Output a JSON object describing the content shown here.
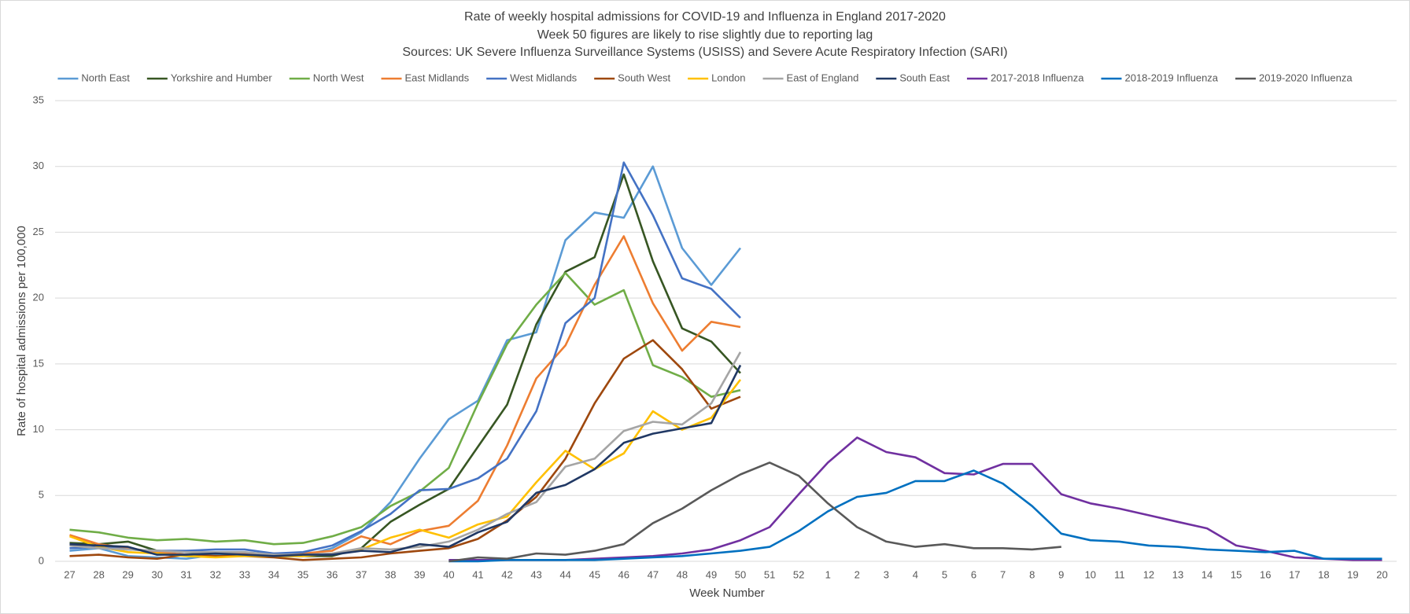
{
  "chart_data": {
    "type": "line",
    "title": "Rate of weekly hospital admissions for COVID-19 and Influenza in England 2017-2020",
    "subtitle": "Week 50 figures are likely to rise slightly due to reporting lag",
    "source": "Sources: UK Severe Influenza Surveillance Systems (USISS) and Severe Acute Respiratory Infection (SARI)",
    "x_label": "Week Number",
    "y_label": "Rate of hospital admissions per 100,000",
    "categories": [
      "27",
      "28",
      "29",
      "30",
      "31",
      "32",
      "33",
      "34",
      "35",
      "36",
      "37",
      "38",
      "39",
      "40",
      "41",
      "42",
      "43",
      "44",
      "45",
      "46",
      "47",
      "48",
      "49",
      "50",
      "51",
      "52",
      "1",
      "2",
      "3",
      "4",
      "5",
      "6",
      "7",
      "8",
      "9",
      "10",
      "11",
      "12",
      "13",
      "14",
      "15",
      "16",
      "17",
      "18",
      "19",
      "20"
    ],
    "ylim": [
      0,
      35
    ],
    "yticks": [
      0,
      5,
      10,
      15,
      20,
      25,
      30,
      35
    ],
    "grid": true,
    "legend": "top",
    "series": [
      {
        "name": "North East",
        "color": "#5b9bd5",
        "values": [
          0.8,
          1.0,
          0.4,
          0.3,
          0.2,
          0.5,
          0.5,
          0.4,
          0.4,
          1.0,
          2.2,
          4.5,
          7.8,
          10.8,
          12.2,
          16.8,
          17.4,
          24.4,
          26.5,
          26.1,
          30.0,
          23.8,
          21.0,
          23.8,
          null,
          null,
          null,
          null,
          null,
          null,
          null,
          null,
          null,
          null,
          null,
          null,
          null,
          null,
          null,
          null,
          null,
          null,
          null,
          null,
          null,
          null
        ]
      },
      {
        "name": "Yorkshire and Humber",
        "color": "#375623",
        "values": [
          1.4,
          1.3,
          1.5,
          0.8,
          0.7,
          0.6,
          0.5,
          0.4,
          0.4,
          0.4,
          1.0,
          3.0,
          4.3,
          5.5,
          8.7,
          11.9,
          18.0,
          22.0,
          23.1,
          29.4,
          22.8,
          17.7,
          16.7,
          14.3,
          null,
          null,
          null,
          null,
          null,
          null,
          null,
          null,
          null,
          null,
          null,
          null,
          null,
          null,
          null,
          null,
          null,
          null,
          null,
          null,
          null,
          null
        ]
      },
      {
        "name": "North West",
        "color": "#70ad47",
        "values": [
          2.4,
          2.2,
          1.8,
          1.6,
          1.7,
          1.5,
          1.6,
          1.3,
          1.4,
          1.9,
          2.6,
          4.2,
          5.3,
          7.1,
          12.0,
          16.5,
          19.5,
          21.9,
          19.5,
          20.6,
          14.9,
          14.0,
          12.5,
          13.0,
          null,
          null,
          null,
          null,
          null,
          null,
          null,
          null,
          null,
          null,
          null,
          null,
          null,
          null,
          null,
          null,
          null,
          null,
          null,
          null,
          null,
          null
        ]
      },
      {
        "name": "East Midlands",
        "color": "#ed7d31",
        "values": [
          2.0,
          1.3,
          1.0,
          0.7,
          0.5,
          0.6,
          0.6,
          0.6,
          0.6,
          0.8,
          1.9,
          1.3,
          2.3,
          2.7,
          4.6,
          8.8,
          13.9,
          16.4,
          21.0,
          24.7,
          19.6,
          16.0,
          18.2,
          17.8,
          null,
          null,
          null,
          null,
          null,
          null,
          null,
          null,
          null,
          null,
          null,
          null,
          null,
          null,
          null,
          null,
          null,
          null,
          null,
          null,
          null,
          null
        ]
      },
      {
        "name": "West Midlands",
        "color": "#4472c4",
        "values": [
          1.0,
          1.1,
          0.9,
          0.8,
          0.8,
          0.9,
          0.9,
          0.6,
          0.7,
          1.2,
          2.3,
          3.6,
          5.4,
          5.5,
          6.3,
          7.8,
          11.4,
          18.1,
          20.0,
          30.3,
          26.3,
          21.5,
          20.7,
          18.5,
          null,
          null,
          null,
          null,
          null,
          null,
          null,
          null,
          null,
          null,
          null,
          null,
          null,
          null,
          null,
          null,
          null,
          null,
          null,
          null,
          null,
          null
        ]
      },
      {
        "name": "South West",
        "color": "#9e480e",
        "values": [
          0.4,
          0.5,
          0.3,
          0.2,
          0.5,
          0.4,
          0.4,
          0.3,
          0.1,
          0.2,
          0.3,
          0.6,
          0.8,
          1.0,
          1.7,
          3.1,
          4.9,
          7.8,
          12.0,
          15.4,
          16.8,
          14.6,
          11.6,
          12.5,
          null,
          null,
          null,
          null,
          null,
          null,
          null,
          null,
          null,
          null,
          null,
          null,
          null,
          null,
          null,
          null,
          null,
          null,
          null,
          null,
          null,
          null
        ]
      },
      {
        "name": "London",
        "color": "#ffc000",
        "values": [
          1.9,
          1.1,
          0.7,
          0.6,
          0.4,
          0.3,
          0.4,
          0.4,
          0.4,
          0.6,
          0.9,
          1.8,
          2.4,
          1.8,
          2.8,
          3.4,
          6.0,
          8.4,
          7.0,
          8.2,
          11.4,
          10.0,
          10.9,
          13.8,
          null,
          null,
          null,
          null,
          null,
          null,
          null,
          null,
          null,
          null,
          null,
          null,
          null,
          null,
          null,
          null,
          null,
          null,
          null,
          null,
          null,
          null
        ]
      },
      {
        "name": "East of England",
        "color": "#a5a5a5",
        "values": [
          1.2,
          1.0,
          0.9,
          0.8,
          0.7,
          0.7,
          0.7,
          0.5,
          0.5,
          0.6,
          1.0,
          0.9,
          1.1,
          1.5,
          2.4,
          3.6,
          4.5,
          7.2,
          7.8,
          9.9,
          10.6,
          10.4,
          12.0,
          15.9,
          null,
          null,
          null,
          null,
          null,
          null,
          null,
          null,
          null,
          null,
          null,
          null,
          null,
          null,
          null,
          null,
          null,
          null,
          null,
          null,
          null,
          null
        ]
      },
      {
        "name": "South East",
        "color": "#203864",
        "values": [
          1.3,
          1.2,
          1.1,
          0.5,
          0.5,
          0.6,
          0.5,
          0.4,
          0.5,
          0.5,
          0.8,
          0.7,
          1.3,
          1.1,
          2.2,
          3.0,
          5.2,
          5.8,
          7.0,
          9.0,
          9.7,
          10.1,
          10.5,
          14.9,
          null,
          null,
          null,
          null,
          null,
          null,
          null,
          null,
          null,
          null,
          null,
          null,
          null,
          null,
          null,
          null,
          null,
          null,
          null,
          null,
          null,
          null
        ]
      },
      {
        "name": "2017-2018 Influenza",
        "color": "#7030a0",
        "values": [
          null,
          null,
          null,
          null,
          null,
          null,
          null,
          null,
          null,
          null,
          null,
          null,
          null,
          0.1,
          0.1,
          0.1,
          0.1,
          0.1,
          0.2,
          0.3,
          0.4,
          0.6,
          0.9,
          1.6,
          2.6,
          5.1,
          7.5,
          9.4,
          8.3,
          7.9,
          6.7,
          6.6,
          7.4,
          7.4,
          5.1,
          4.4,
          4.0,
          3.5,
          3.0,
          2.5,
          1.2,
          0.8,
          0.3,
          0.2,
          0.1,
          0.1
        ]
      },
      {
        "name": "2018-2019 Influenza",
        "color": "#0070c0",
        "values": [
          null,
          null,
          null,
          null,
          null,
          null,
          null,
          null,
          null,
          null,
          null,
          null,
          null,
          0.0,
          0.0,
          0.1,
          0.1,
          0.1,
          0.1,
          0.2,
          0.3,
          0.4,
          0.6,
          0.8,
          1.1,
          2.3,
          3.8,
          4.9,
          5.2,
          6.1,
          6.1,
          6.9,
          5.9,
          4.2,
          2.1,
          1.6,
          1.5,
          1.2,
          1.1,
          0.9,
          0.8,
          0.7,
          0.8,
          0.2,
          0.2,
          0.2
        ]
      },
      {
        "name": "2019-2020 Influenza",
        "color": "#595959",
        "values": [
          null,
          null,
          null,
          null,
          null,
          null,
          null,
          null,
          null,
          null,
          null,
          null,
          null,
          0.0,
          0.3,
          0.2,
          0.6,
          0.5,
          0.8,
          1.3,
          2.9,
          4.0,
          5.4,
          6.6,
          7.5,
          6.5,
          4.4,
          2.6,
          1.5,
          1.1,
          1.3,
          1.0,
          1.0,
          0.9,
          1.1,
          null,
          null,
          null,
          null,
          null,
          null,
          null,
          null,
          null,
          null,
          null
        ]
      }
    ]
  }
}
